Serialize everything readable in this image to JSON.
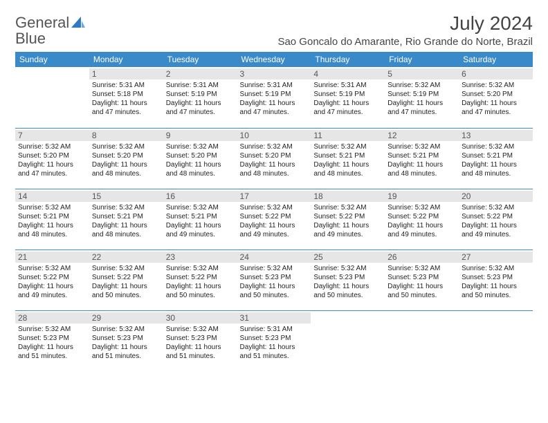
{
  "logo": {
    "text1": "General",
    "text2": "Blue"
  },
  "title": "July 2024",
  "location": "Sao Goncalo do Amarante, Rio Grande do Norte, Brazil",
  "colors": {
    "header_bg": "#3a8ac9",
    "header_text": "#ffffff",
    "daynum_bg": "#e6e6e6",
    "border": "#3a8ac9",
    "logo_blue": "#2f7ac4"
  },
  "weekdays": [
    "Sunday",
    "Monday",
    "Tuesday",
    "Wednesday",
    "Thursday",
    "Friday",
    "Saturday"
  ],
  "weeks": [
    [
      null,
      {
        "n": "1",
        "sunrise": "5:31 AM",
        "sunset": "5:18 PM",
        "daylight": "11 hours and 47 minutes."
      },
      {
        "n": "2",
        "sunrise": "5:31 AM",
        "sunset": "5:19 PM",
        "daylight": "11 hours and 47 minutes."
      },
      {
        "n": "3",
        "sunrise": "5:31 AM",
        "sunset": "5:19 PM",
        "daylight": "11 hours and 47 minutes."
      },
      {
        "n": "4",
        "sunrise": "5:31 AM",
        "sunset": "5:19 PM",
        "daylight": "11 hours and 47 minutes."
      },
      {
        "n": "5",
        "sunrise": "5:32 AM",
        "sunset": "5:19 PM",
        "daylight": "11 hours and 47 minutes."
      },
      {
        "n": "6",
        "sunrise": "5:32 AM",
        "sunset": "5:20 PM",
        "daylight": "11 hours and 47 minutes."
      }
    ],
    [
      {
        "n": "7",
        "sunrise": "5:32 AM",
        "sunset": "5:20 PM",
        "daylight": "11 hours and 47 minutes."
      },
      {
        "n": "8",
        "sunrise": "5:32 AM",
        "sunset": "5:20 PM",
        "daylight": "11 hours and 48 minutes."
      },
      {
        "n": "9",
        "sunrise": "5:32 AM",
        "sunset": "5:20 PM",
        "daylight": "11 hours and 48 minutes."
      },
      {
        "n": "10",
        "sunrise": "5:32 AM",
        "sunset": "5:20 PM",
        "daylight": "11 hours and 48 minutes."
      },
      {
        "n": "11",
        "sunrise": "5:32 AM",
        "sunset": "5:21 PM",
        "daylight": "11 hours and 48 minutes."
      },
      {
        "n": "12",
        "sunrise": "5:32 AM",
        "sunset": "5:21 PM",
        "daylight": "11 hours and 48 minutes."
      },
      {
        "n": "13",
        "sunrise": "5:32 AM",
        "sunset": "5:21 PM",
        "daylight": "11 hours and 48 minutes."
      }
    ],
    [
      {
        "n": "14",
        "sunrise": "5:32 AM",
        "sunset": "5:21 PM",
        "daylight": "11 hours and 48 minutes."
      },
      {
        "n": "15",
        "sunrise": "5:32 AM",
        "sunset": "5:21 PM",
        "daylight": "11 hours and 48 minutes."
      },
      {
        "n": "16",
        "sunrise": "5:32 AM",
        "sunset": "5:21 PM",
        "daylight": "11 hours and 49 minutes."
      },
      {
        "n": "17",
        "sunrise": "5:32 AM",
        "sunset": "5:22 PM",
        "daylight": "11 hours and 49 minutes."
      },
      {
        "n": "18",
        "sunrise": "5:32 AM",
        "sunset": "5:22 PM",
        "daylight": "11 hours and 49 minutes."
      },
      {
        "n": "19",
        "sunrise": "5:32 AM",
        "sunset": "5:22 PM",
        "daylight": "11 hours and 49 minutes."
      },
      {
        "n": "20",
        "sunrise": "5:32 AM",
        "sunset": "5:22 PM",
        "daylight": "11 hours and 49 minutes."
      }
    ],
    [
      {
        "n": "21",
        "sunrise": "5:32 AM",
        "sunset": "5:22 PM",
        "daylight": "11 hours and 49 minutes."
      },
      {
        "n": "22",
        "sunrise": "5:32 AM",
        "sunset": "5:22 PM",
        "daylight": "11 hours and 50 minutes."
      },
      {
        "n": "23",
        "sunrise": "5:32 AM",
        "sunset": "5:22 PM",
        "daylight": "11 hours and 50 minutes."
      },
      {
        "n": "24",
        "sunrise": "5:32 AM",
        "sunset": "5:23 PM",
        "daylight": "11 hours and 50 minutes."
      },
      {
        "n": "25",
        "sunrise": "5:32 AM",
        "sunset": "5:23 PM",
        "daylight": "11 hours and 50 minutes."
      },
      {
        "n": "26",
        "sunrise": "5:32 AM",
        "sunset": "5:23 PM",
        "daylight": "11 hours and 50 minutes."
      },
      {
        "n": "27",
        "sunrise": "5:32 AM",
        "sunset": "5:23 PM",
        "daylight": "11 hours and 50 minutes."
      }
    ],
    [
      {
        "n": "28",
        "sunrise": "5:32 AM",
        "sunset": "5:23 PM",
        "daylight": "11 hours and 51 minutes."
      },
      {
        "n": "29",
        "sunrise": "5:32 AM",
        "sunset": "5:23 PM",
        "daylight": "11 hours and 51 minutes."
      },
      {
        "n": "30",
        "sunrise": "5:32 AM",
        "sunset": "5:23 PM",
        "daylight": "11 hours and 51 minutes."
      },
      {
        "n": "31",
        "sunrise": "5:31 AM",
        "sunset": "5:23 PM",
        "daylight": "11 hours and 51 minutes."
      },
      null,
      null,
      null
    ]
  ],
  "labels": {
    "sunrise": "Sunrise:",
    "sunset": "Sunset:",
    "daylight": "Daylight:"
  }
}
